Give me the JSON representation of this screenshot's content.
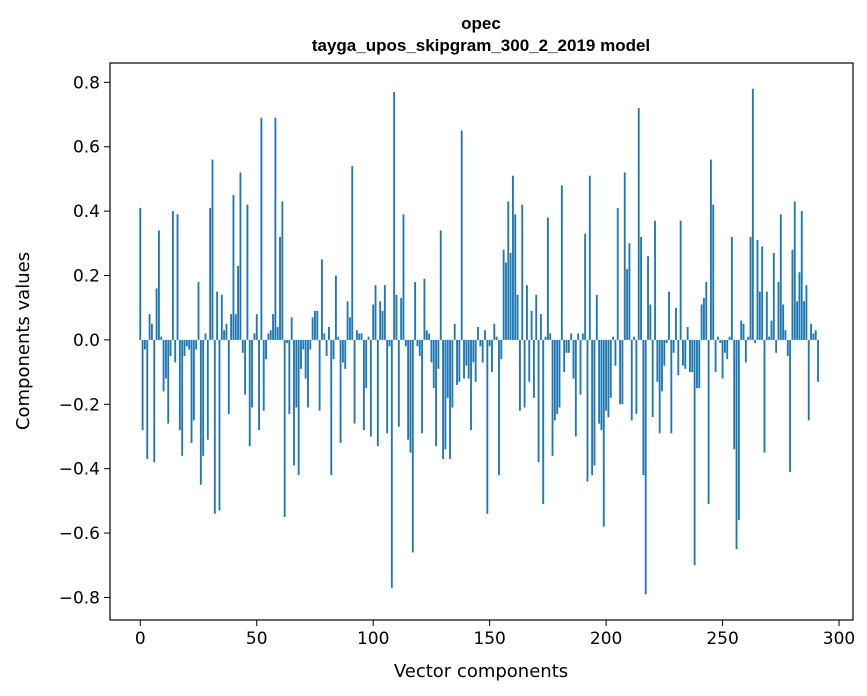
{
  "chart_data": {
    "type": "bar",
    "title_line1": "opec",
    "title_line2": "tayga_upos_skipgram_300_2_2019 model",
    "xlabel": "Vector components",
    "ylabel": "Components values",
    "xlim": [
      -13,
      306
    ],
    "ylim": [
      -0.87,
      0.86
    ],
    "xticks": [
      0,
      50,
      100,
      150,
      200,
      250,
      300
    ],
    "xtick_labels": [
      "0",
      "50",
      "100",
      "150",
      "200",
      "250",
      "300"
    ],
    "yticks": [
      0.8,
      0.6,
      0.4,
      0.2,
      0.0,
      -0.2,
      -0.4,
      -0.6,
      -0.8
    ],
    "ytick_labels": [
      "0.8",
      "0.6",
      "0.4",
      "0.2",
      "0.0",
      "−0.2",
      "−0.4",
      "−0.6",
      "−0.8"
    ],
    "bar_color": "#1f77b4",
    "values": [
      0.41,
      -0.28,
      -0.03,
      -0.37,
      0.08,
      0.05,
      -0.38,
      0.16,
      0.34,
      0.01,
      -0.16,
      -0.12,
      -0.26,
      -0.05,
      0.4,
      -0.07,
      0.39,
      -0.28,
      -0.36,
      -0.05,
      -0.02,
      -0.03,
      -0.32,
      -0.25,
      -0.03,
      0.18,
      -0.45,
      -0.36,
      0.02,
      -0.31,
      0.41,
      0.56,
      -0.54,
      0.15,
      -0.53,
      0.14,
      0.03,
      0.05,
      -0.23,
      0.08,
      0.45,
      0.08,
      0.23,
      0.52,
      -0.04,
      -0.17,
      0.42,
      -0.33,
      -0.21,
      0.02,
      0.08,
      -0.28,
      0.69,
      -0.22,
      -0.06,
      0.02,
      0.03,
      0.08,
      0.69,
      0.04,
      0.32,
      0.43,
      -0.55,
      -0.01,
      -0.23,
      0.07,
      -0.39,
      -0.21,
      -0.42,
      -0.09,
      -0.03,
      -0.12,
      -0.21,
      -0.03,
      0.07,
      0.09,
      0.09,
      -0.22,
      0.25,
      0.02,
      -0.05,
      0.04,
      -0.42,
      -0.06,
      0.2,
      0.01,
      -0.32,
      -0.07,
      -0.09,
      0.12,
      0.07,
      0.54,
      -0.26,
      0.03,
      0.02,
      0.02,
      -0.28,
      -0.15,
      0.01,
      -0.3,
      0.11,
      0.17,
      -0.33,
      0.12,
      0.09,
      0.17,
      -0.29,
      -0.02,
      -0.77,
      0.77,
      0.14,
      -0.27,
      0.13,
      0.39,
      -0.02,
      -0.31,
      -0.35,
      -0.66,
      0.18,
      -0.02,
      -0.05,
      -0.29,
      0.19,
      0.03,
      0.02,
      -0.07,
      -0.15,
      -0.33,
      -0.09,
      0.34,
      -0.37,
      -0.34,
      -0.18,
      -0.37,
      -0.21,
      0.05,
      -0.14,
      -0.13,
      0.65,
      -0.12,
      -0.08,
      -0.12,
      -0.28,
      -0.07,
      -0.13,
      0.04,
      -0.02,
      -0.07,
      0.03,
      -0.54,
      -0.02,
      -0.1,
      0.05,
      0.01,
      -0.42,
      -0.06,
      0.28,
      0.24,
      0.43,
      0.27,
      0.51,
      0.39,
      0.14,
      -0.22,
      0.42,
      -0.21,
      0.17,
      -0.13,
      0.09,
      -0.18,
      0.14,
      -0.38,
      0.08,
      -0.51,
      0.01,
      0.38,
      0.02,
      -0.36,
      -0.25,
      -0.23,
      -0.21,
      0.48,
      -0.1,
      -0.04,
      -0.04,
      0.02,
      -0.12,
      -0.3,
      0.02,
      -0.17,
      0.02,
      0.33,
      -0.44,
      0.51,
      -0.42,
      -0.39,
      0.14,
      -0.26,
      -0.28,
      -0.58,
      -0.22,
      -0.24,
      -0.18,
      0.01,
      -0.08,
      0.41,
      -0.2,
      -0.2,
      0.52,
      0.22,
      0.3,
      -0.25,
      0.01,
      -0.23,
      0.72,
      0.32,
      -0.42,
      -0.79,
      0.26,
      0.11,
      -0.24,
      0.37,
      -0.13,
      -0.29,
      -0.16,
      -0.08,
      -0.01,
      0.15,
      -0.29,
      -0.04,
      0.1,
      -0.11,
      0.37,
      -0.08,
      -0.09,
      0.04,
      -0.1,
      -0.1,
      -0.7,
      -0.15,
      -0.15,
      0.11,
      0.13,
      0.18,
      -0.51,
      0.56,
      0.42,
      -0.1,
      0.01,
      -0.01,
      -0.12,
      -0.04,
      -0.06,
      0.01,
      0.32,
      -0.34,
      -0.65,
      -0.56,
      0.06,
      0.05,
      -0.07,
      0.01,
      0.32,
      0.78,
      -0.01,
      0.31,
      0.15,
      0.29,
      -0.35,
      0.15,
      0.01,
      0.06,
      0.27,
      -0.04,
      0.18,
      0.39,
      0.11,
      0.03,
      -0.05,
      -0.41,
      0.28,
      0.43,
      0.12,
      0.21,
      0.4,
      0.12,
      0.17,
      -0.25,
      0.05,
      0.02,
      0.03,
      -0.13
    ]
  }
}
